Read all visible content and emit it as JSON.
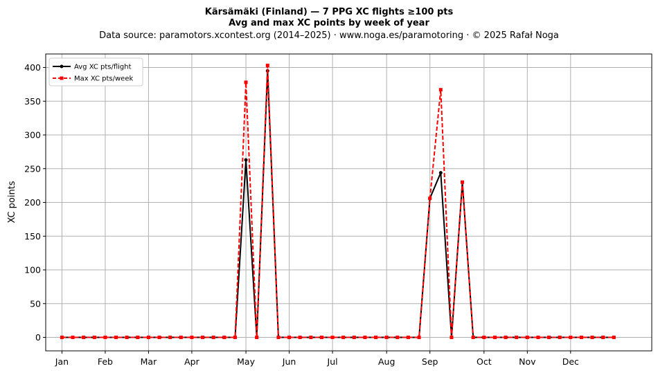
{
  "chart_data": {
    "type": "line",
    "title_line1": "Kärsämäki (Finland)  —  7 PPG XC flights ≥100 pts",
    "title_line2": "Avg and max XC points by week of year",
    "subtitle": "Data source: paramotors.xcontest.org (2014–2025)  ·  www.noga.es/paramotoring  ·  © 2025 Rafał Noga",
    "xlabel": "",
    "ylabel": "XC points",
    "ylim": [
      -20,
      420
    ],
    "xlim": [
      -1.5,
      54.5
    ],
    "yticks": [
      0,
      50,
      100,
      150,
      200,
      250,
      300,
      350,
      400
    ],
    "xticks": [
      {
        "week": 0,
        "label": "Jan"
      },
      {
        "week": 4,
        "label": "Feb"
      },
      {
        "week": 8,
        "label": "Mar"
      },
      {
        "week": 12,
        "label": "Apr"
      },
      {
        "week": 17,
        "label": "May"
      },
      {
        "week": 21,
        "label": "Jun"
      },
      {
        "week": 25,
        "label": "Jul"
      },
      {
        "week": 30,
        "label": "Aug"
      },
      {
        "week": 34,
        "label": "Sep"
      },
      {
        "week": 39,
        "label": "Oct"
      },
      {
        "week": 43,
        "label": "Nov"
      },
      {
        "week": 47,
        "label": "Dec"
      }
    ],
    "grid": true,
    "legend_position": "top-left",
    "x": [
      0,
      1,
      2,
      3,
      4,
      5,
      6,
      7,
      8,
      9,
      10,
      11,
      12,
      13,
      14,
      15,
      16,
      17,
      18,
      19,
      20,
      21,
      22,
      23,
      24,
      25,
      26,
      27,
      28,
      29,
      30,
      31,
      32,
      33,
      34,
      35,
      36,
      37,
      38,
      39,
      40,
      41,
      42,
      43,
      44,
      45,
      46,
      47,
      48,
      49,
      50,
      51
    ],
    "series": [
      {
        "name": "Avg XC pts/flight",
        "color": "#000000",
        "style": "solid-circle",
        "values": [
          0,
          0,
          0,
          0,
          0,
          0,
          0,
          0,
          0,
          0,
          0,
          0,
          0,
          0,
          0,
          0,
          0,
          263,
          0,
          395,
          0,
          0,
          0,
          0,
          0,
          0,
          0,
          0,
          0,
          0,
          0,
          0,
          0,
          0,
          206,
          244,
          0,
          230,
          0,
          0,
          0,
          0,
          0,
          0,
          0,
          0,
          0,
          0,
          0,
          0,
          0,
          0
        ]
      },
      {
        "name": "Max XC pts/week",
        "color": "#ff0000",
        "style": "dashed-square",
        "values": [
          0,
          0,
          0,
          0,
          0,
          0,
          0,
          0,
          0,
          0,
          0,
          0,
          0,
          0,
          0,
          0,
          0,
          378,
          0,
          403,
          0,
          0,
          0,
          0,
          0,
          0,
          0,
          0,
          0,
          0,
          0,
          0,
          0,
          0,
          206,
          367,
          0,
          230,
          0,
          0,
          0,
          0,
          0,
          0,
          0,
          0,
          0,
          0,
          0,
          0,
          0,
          0
        ]
      }
    ]
  }
}
